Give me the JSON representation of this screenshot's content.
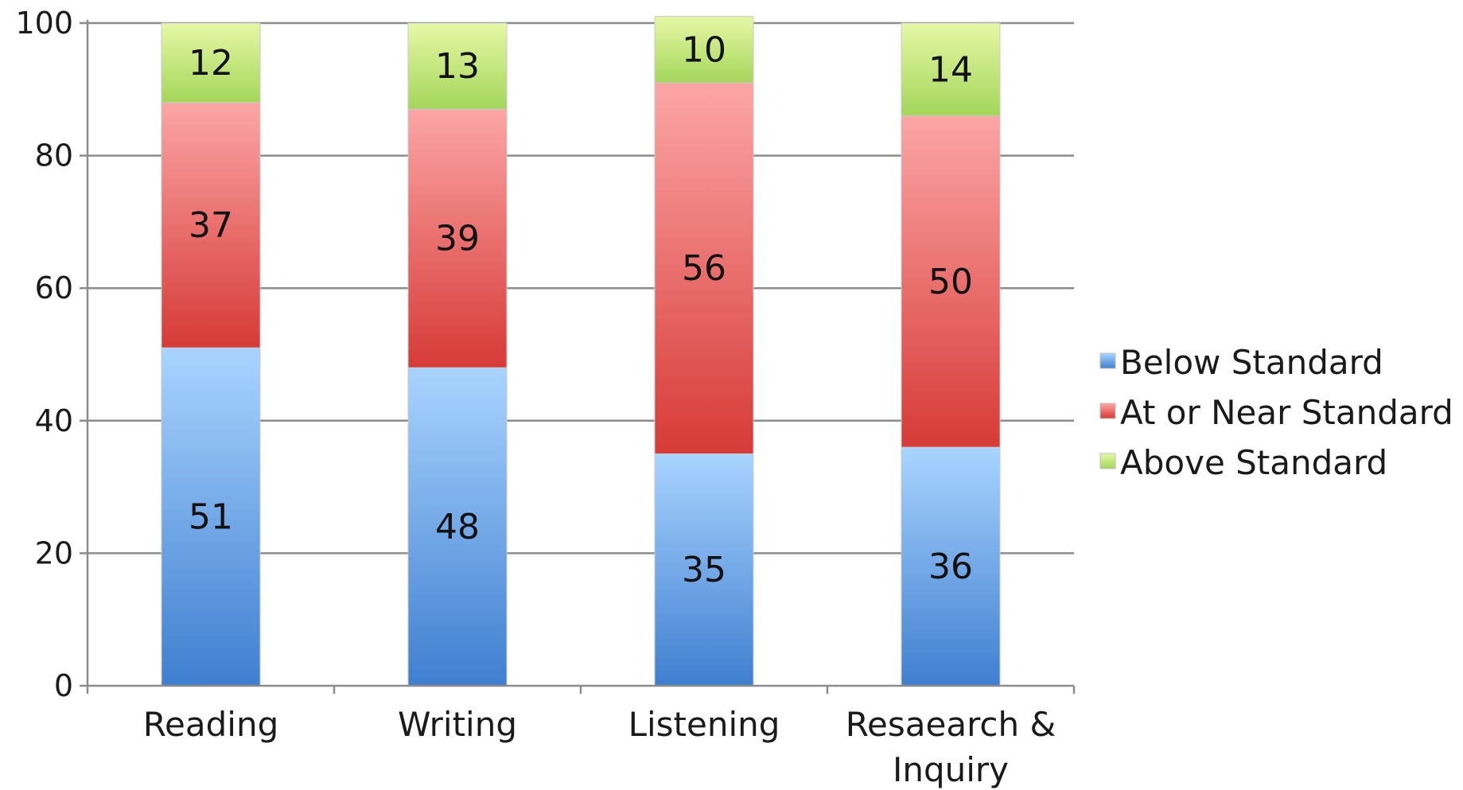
{
  "chart_data": {
    "type": "bar",
    "stacked": true,
    "categories": [
      "Reading",
      "Writing",
      "Listening",
      "Resaearch & Inquiry"
    ],
    "series": [
      {
        "name": "Below Standard",
        "values": [
          51,
          48,
          35,
          36
        ],
        "color": "#4a8fd6",
        "gradient": [
          "#a9d4ff",
          "#3f7fd0"
        ]
      },
      {
        "name": "At or Near Standard",
        "values": [
          37,
          39,
          56,
          50
        ],
        "color": "#e14b4b",
        "gradient": [
          "#fca6a6",
          "#d63a36"
        ]
      },
      {
        "name": "Above Standard",
        "values": [
          12,
          13,
          10,
          14
        ],
        "color": "#b5e06b",
        "gradient": [
          "#e6f8a6",
          "#a4d65a"
        ]
      }
    ],
    "ylim": [
      0,
      100
    ],
    "yticks": [
      0,
      20,
      40,
      60,
      80,
      100
    ],
    "grid": true,
    "legend": "right"
  }
}
